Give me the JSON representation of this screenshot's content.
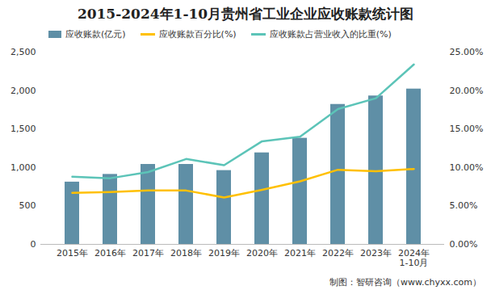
{
  "chart_data": {
    "type": "bar",
    "title": "2015-2024年1-10月贵州省工业企业应收账款统计图",
    "caption": "制图：智研咨询（www.chyxx.com）",
    "categories": [
      "2015年",
      "2016年",
      "2017年",
      "2018年",
      "2019年",
      "2020年",
      "2021年",
      "2022年",
      "2023年",
      "2024年\n1-10月"
    ],
    "series": [
      {
        "name": "应收账款(亿元)",
        "type": "bar",
        "color": "#5f8fa6",
        "values": [
          810,
          910,
          1040,
          1040,
          960,
          1190,
          1380,
          1820,
          1930,
          2020
        ]
      },
      {
        "name": "应收账款百分比(%)",
        "type": "line",
        "axis": "y2",
        "color": "#ffc000",
        "values": [
          6.7,
          6.8,
          7.0,
          7.0,
          6.1,
          7.1,
          8.2,
          9.7,
          9.5,
          9.8
        ]
      },
      {
        "name": "应收账款占营业收入的比重(%)",
        "type": "line",
        "axis": "y2",
        "color": "#5cc4b8",
        "values": [
          8.8,
          8.6,
          9.4,
          11.1,
          10.3,
          13.4,
          14.0,
          17.6,
          19.0,
          23.4
        ]
      }
    ],
    "ylim": [
      0,
      2500
    ],
    "yticks": [
      0,
      500,
      1000,
      1500,
      2000,
      2500
    ],
    "y2lim": [
      0,
      25
    ],
    "y2ticks": [
      {
        "value": 0,
        "label": "0.00%"
      },
      {
        "value": 5,
        "label": "5.00%"
      },
      {
        "value": 10,
        "label": "10.00%"
      },
      {
        "value": 15,
        "label": "15.00%"
      },
      {
        "value": 20,
        "label": "20.00%"
      },
      {
        "value": 25,
        "label": "25.00%"
      }
    ],
    "grid": false,
    "legend": "top"
  }
}
